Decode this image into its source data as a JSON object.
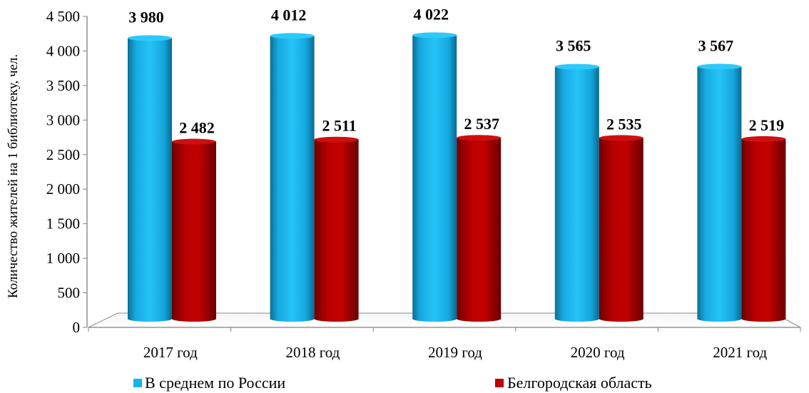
{
  "chart_data": {
    "type": "bar",
    "title": "",
    "xlabel": "",
    "ylabel": "Количество жителей на 1 библиотеку, чел.",
    "ylim": [
      0,
      4500
    ],
    "yticks": [
      0,
      500,
      1000,
      1500,
      2000,
      2500,
      3000,
      3500,
      4000,
      4500
    ],
    "ytick_labels": [
      "0",
      "500",
      "1 000",
      "1 500",
      "2 000",
      "2 500",
      "3 000",
      "3 500",
      "4 000",
      "4 500"
    ],
    "categories": [
      "2017 год",
      "2018 год",
      "2019 год",
      "2020 год",
      "2021 год"
    ],
    "series": [
      {
        "name": "В среднем по России",
        "color": "#17B4EC",
        "values": [
          3980,
          4012,
          4022,
          3565,
          3567
        ],
        "labels": [
          "3 980",
          "4 012",
          "4 022",
          "3 565",
          "3 567"
        ]
      },
      {
        "name": "Белгородская область",
        "color": "#C00000",
        "values": [
          2482,
          2511,
          2537,
          2535,
          2519
        ],
        "labels": [
          "2 482",
          "2 511",
          "2 537",
          "2 535",
          "2 519"
        ]
      }
    ],
    "grid": false,
    "legend_position": "bottom",
    "style": "3d-cylinder"
  }
}
